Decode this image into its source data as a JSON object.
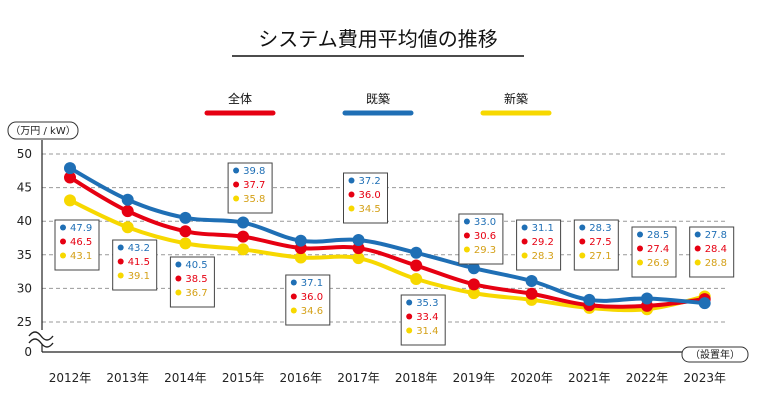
{
  "chart_data": {
    "type": "line",
    "title": "システム費用平均値の推移",
    "ylabel": "（万円 / kW）",
    "xlabel": "（設置年）",
    "categories": [
      "2012年",
      "2013年",
      "2014年",
      "2015年",
      "2016年",
      "2017年",
      "2018年",
      "2019年",
      "2020年",
      "2021年",
      "2022年",
      "2023年"
    ],
    "yticks": [
      "50",
      "45",
      "40",
      "35",
      "30",
      "25",
      "0"
    ],
    "ylim": [
      25,
      50
    ],
    "axis_break": true,
    "grid": true,
    "legend_position": "top",
    "series": [
      {
        "name": "全体",
        "color": "#e60012",
        "values": [
          46.5,
          41.5,
          38.5,
          37.7,
          36.0,
          36.0,
          33.4,
          30.6,
          29.2,
          27.5,
          27.4,
          28.4
        ]
      },
      {
        "name": "既築",
        "color": "#1f6fb5",
        "values": [
          47.9,
          43.2,
          40.5,
          39.8,
          37.1,
          37.2,
          35.3,
          33.0,
          31.1,
          28.3,
          28.5,
          27.8
        ]
      },
      {
        "name": "新築",
        "color": "#f7d800",
        "values": [
          43.1,
          39.1,
          36.7,
          35.8,
          34.6,
          34.5,
          31.4,
          29.3,
          28.3,
          27.1,
          26.9,
          28.8
        ]
      }
    ],
    "labels_text": {
      "全体": [
        "46.5",
        "41.5",
        "38.5",
        "37.7",
        "36.0",
        "36.0",
        "33.4",
        "30.6",
        "29.2",
        "27.5",
        "27.4",
        "28.4"
      ],
      "既築": [
        "47.9",
        "43.2",
        "40.5",
        "39.8",
        "37.1",
        "37.2",
        "35.3",
        "33.0",
        "31.1",
        "28.3",
        "28.5",
        "27.8"
      ],
      "新築": [
        "43.1",
        "39.1",
        "36.7",
        "35.8",
        "34.6",
        "34.5",
        "31.4",
        "29.3",
        "28.3",
        "27.1",
        "26.9",
        "28.8"
      ]
    },
    "colors": {
      "total": "#e60012",
      "existing": "#1f6fb5",
      "new": "#f7d800",
      "new_text": "#d4a017",
      "grid": "#999999"
    }
  }
}
